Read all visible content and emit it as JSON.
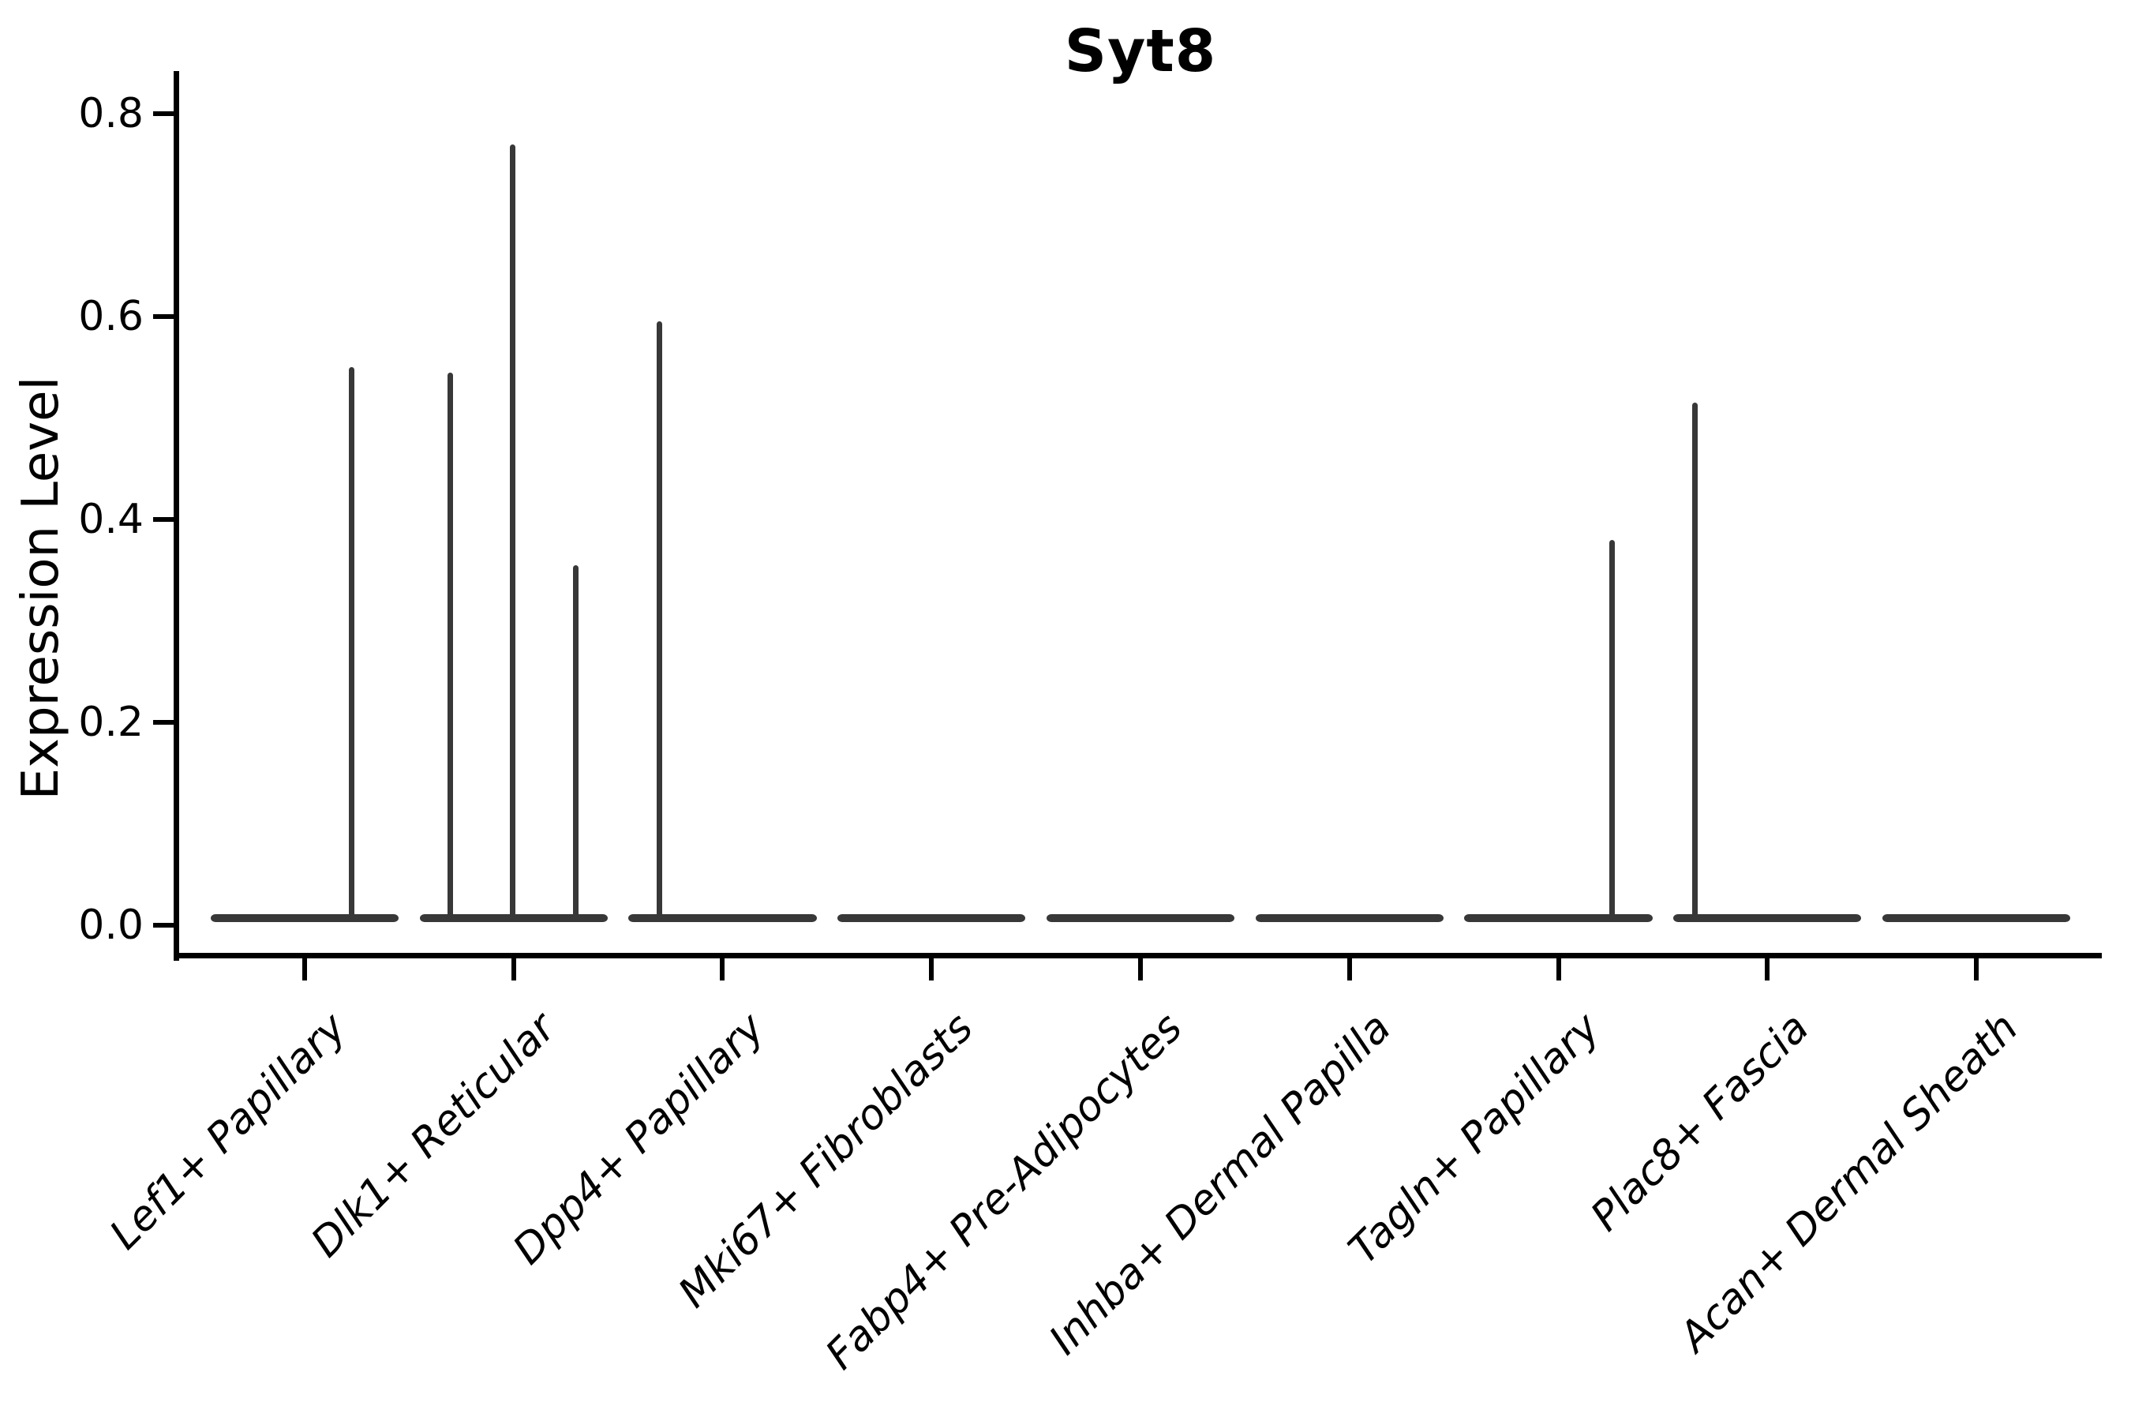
{
  "chart_data": {
    "type": "violin",
    "title": "Syt8",
    "xlabel": "",
    "ylabel": "Expression Level",
    "categories": [
      "Lef1+ Papillary",
      "Dlk1+ Reticular",
      "Dpp4+ Papillary",
      "Mki67+ Fibroblasts",
      "Fabp4+ Pre-Adipocytes",
      "Inhba+ Dermal Papilla",
      "Tagln+ Papillary",
      "Plac8+ Fascia",
      "Acan+ Dermal Sheath"
    ],
    "y_ticks": [
      0.0,
      0.2,
      0.4,
      0.6,
      0.8
    ],
    "ylim": [
      0,
      0.84
    ],
    "grid": false,
    "legend": null,
    "x_tick_label_rotation_deg": 45,
    "x_tick_label_style": "italic",
    "description": "Violin plot; every violin is collapsed to a flat bar at expression 0, with thin vertical density spikes where rare expressing cells occur.",
    "series": [
      {
        "name": "Lef1+ Papillary",
        "baseline_value": 0,
        "spikes": [
          {
            "value": 0.55,
            "x_offset": 0.5
          }
        ]
      },
      {
        "name": "Dlk1+ Reticular",
        "baseline_value": 0,
        "spikes": [
          {
            "value": 0.545,
            "x_offset": -0.67
          },
          {
            "value": 0.77,
            "x_offset": -0.01
          },
          {
            "value": 0.355,
            "x_offset": 0.66
          }
        ]
      },
      {
        "name": "Dpp4+ Papillary",
        "baseline_value": 0,
        "spikes": [
          {
            "value": 0.595,
            "x_offset": -0.67
          }
        ]
      },
      {
        "name": "Mki67+ Fibroblasts",
        "baseline_value": 0,
        "spikes": []
      },
      {
        "name": "Fabp4+ Pre-Adipocytes",
        "baseline_value": 0,
        "spikes": []
      },
      {
        "name": "Inhba+ Dermal Papilla",
        "baseline_value": 0,
        "spikes": []
      },
      {
        "name": "Tagln+ Papillary",
        "baseline_value": 0,
        "spikes": [
          {
            "value": 0.38,
            "x_offset": 0.57
          }
        ]
      },
      {
        "name": "Plac8+ Fascia",
        "baseline_value": 0,
        "spikes": [
          {
            "value": 0.515,
            "x_offset": -0.77
          }
        ]
      },
      {
        "name": "Acan+ Dermal Sheath",
        "baseline_value": 0,
        "spikes": []
      }
    ],
    "style": {
      "violin_color": "#383838",
      "axis_color": "#000000",
      "text_color": "#000000",
      "background_color": "#ffffff"
    }
  }
}
